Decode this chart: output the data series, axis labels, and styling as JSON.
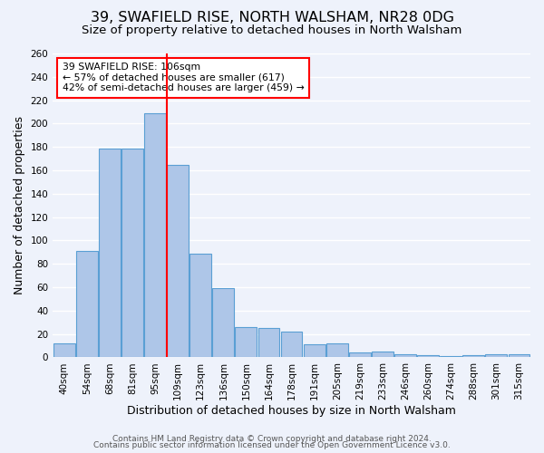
{
  "title": "39, SWAFIELD RISE, NORTH WALSHAM, NR28 0DG",
  "subtitle": "Size of property relative to detached houses in North Walsham",
  "xlabel": "Distribution of detached houses by size in North Walsham",
  "ylabel": "Number of detached properties",
  "categories": [
    "40sqm",
    "54sqm",
    "68sqm",
    "81sqm",
    "95sqm",
    "109sqm",
    "123sqm",
    "136sqm",
    "150sqm",
    "164sqm",
    "178sqm",
    "191sqm",
    "205sqm",
    "219sqm",
    "233sqm",
    "246sqm",
    "260sqm",
    "274sqm",
    "288sqm",
    "301sqm",
    "315sqm"
  ],
  "bar_heights": [
    12,
    91,
    179,
    179,
    209,
    165,
    89,
    59,
    26,
    25,
    22,
    11,
    12,
    4,
    5,
    3,
    2,
    1,
    2,
    3,
    3
  ],
  "bar_color": "#aec6e8",
  "bar_edge_color": "#5a9fd4",
  "annotation_line1": "39 SWAFIELD RISE: 106sqm",
  "annotation_line2": "← 57% of detached houses are smaller (617)",
  "annotation_line3": "42% of semi-detached houses are larger (459) →",
  "vline_index": 5,
  "vline_color": "red",
  "ylim": [
    0,
    260
  ],
  "yticks": [
    0,
    20,
    40,
    60,
    80,
    100,
    120,
    140,
    160,
    180,
    200,
    220,
    240,
    260
  ],
  "footer_line1": "Contains HM Land Registry data © Crown copyright and database right 2024.",
  "footer_line2": "Contains public sector information licensed under the Open Government Licence v3.0.",
  "bg_color": "#eef2fb",
  "grid_color": "#ffffff",
  "title_fontsize": 11.5,
  "subtitle_fontsize": 9.5,
  "axis_label_fontsize": 9,
  "tick_fontsize": 7.5,
  "footer_fontsize": 6.5
}
